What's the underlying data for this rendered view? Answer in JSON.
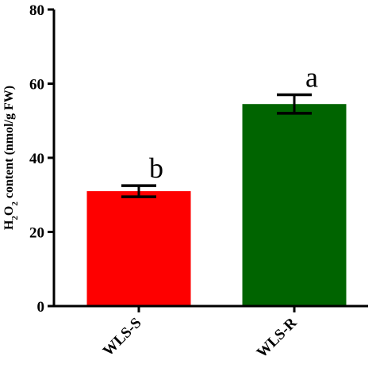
{
  "chart_data": {
    "type": "bar",
    "categories": [
      "WLS-S",
      "WLS-R"
    ],
    "values": [
      31,
      54.5
    ],
    "errors": [
      1.5,
      2.5
    ],
    "significance": [
      "b",
      "a"
    ],
    "bar_colors": [
      "#fe0000",
      "#006400"
    ],
    "ylabel": "H2O2 content (nmol/g FW)",
    "ylim": [
      0,
      80
    ],
    "yticks": [
      0,
      20,
      40,
      60,
      80
    ],
    "grid": false,
    "legend": "none"
  }
}
